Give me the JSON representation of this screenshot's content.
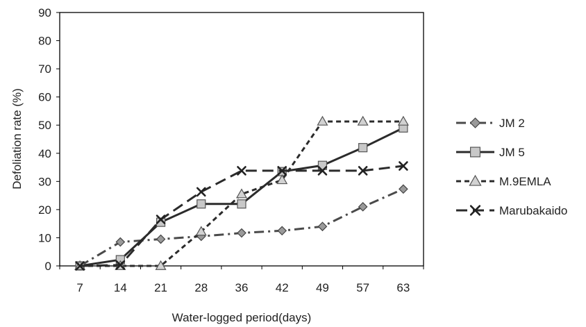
{
  "chart_data": {
    "type": "line",
    "title": "",
    "xlabel": "Water-logged period(days)",
    "ylabel": "Defoliation rate (%)",
    "categories": [
      "7",
      "14",
      "21",
      "28",
      "36",
      "42",
      "49",
      "57",
      "63"
    ],
    "ylim": [
      0,
      90
    ],
    "yticks": [
      "0",
      "10",
      "20",
      "30",
      "40",
      "50",
      "60",
      "70",
      "80",
      "90"
    ],
    "grid": false,
    "legend_position": "right",
    "series": [
      {
        "name": "JM 2",
        "values": [
          0,
          8.5,
          9.5,
          10.5,
          11.7,
          12.5,
          14,
          21,
          27.3
        ],
        "color": "#4a4a4a",
        "marker": "diamond",
        "dash": "dashdot"
      },
      {
        "name": "JM 5",
        "values": [
          0,
          2.2,
          15.5,
          22,
          22,
          33.5,
          35.7,
          42,
          49
        ],
        "color": "#2b2b2b",
        "marker": "square",
        "dash": "solid"
      },
      {
        "name": "M.9EMLA",
        "values": [
          0,
          0,
          0,
          12.2,
          25.5,
          30.5,
          51.3,
          51.3,
          51.3
        ],
        "color": "#2b2b2b",
        "marker": "triangle",
        "dash": "shortdash"
      },
      {
        "name": "Marubakaido",
        "values": [
          0,
          0.3,
          16.5,
          26.3,
          33.8,
          33.8,
          33.8,
          33.8,
          35.5
        ],
        "color": "#2b2b2b",
        "marker": "cross",
        "dash": "longdash"
      }
    ]
  }
}
